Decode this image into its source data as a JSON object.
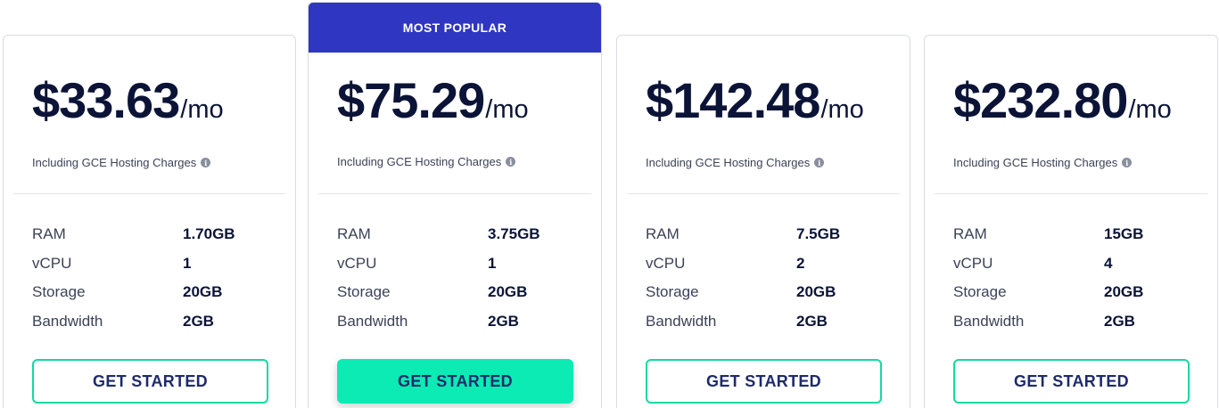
{
  "badge": {
    "label": "MOST POPULAR"
  },
  "plans": [
    {
      "price": "$33.63",
      "period": "/mo",
      "note": "Including GCE Hosting Charges",
      "specs": [
        {
          "label": "RAM",
          "value": "1.70GB"
        },
        {
          "label": "vCPU",
          "value": "1"
        },
        {
          "label": "Storage",
          "value": "20GB"
        },
        {
          "label": "Bandwidth",
          "value": "2GB"
        }
      ],
      "cta": "GET STARTED"
    },
    {
      "price": "$75.29",
      "period": "/mo",
      "note": "Including GCE Hosting Charges",
      "specs": [
        {
          "label": "RAM",
          "value": "3.75GB"
        },
        {
          "label": "vCPU",
          "value": "1"
        },
        {
          "label": "Storage",
          "value": "20GB"
        },
        {
          "label": "Bandwidth",
          "value": "2GB"
        }
      ],
      "cta": "GET STARTED"
    },
    {
      "price": "$142.48",
      "period": "/mo",
      "note": "Including GCE Hosting Charges",
      "specs": [
        {
          "label": "RAM",
          "value": "7.5GB"
        },
        {
          "label": "vCPU",
          "value": "2"
        },
        {
          "label": "Storage",
          "value": "20GB"
        },
        {
          "label": "Bandwidth",
          "value": "2GB"
        }
      ],
      "cta": "GET STARTED"
    },
    {
      "price": "$232.80",
      "period": "/mo",
      "note": "Including GCE Hosting Charges",
      "specs": [
        {
          "label": "RAM",
          "value": "15GB"
        },
        {
          "label": "vCPU",
          "value": "4"
        },
        {
          "label": "Storage",
          "value": "20GB"
        },
        {
          "label": "Bandwidth",
          "value": "2GB"
        }
      ],
      "cta": "GET STARTED"
    }
  ],
  "icons": {
    "note_icon": "info-icon"
  },
  "colors": {
    "accent": "#2f36c2",
    "cta": "#0bebb3",
    "text": "#0b1437"
  }
}
